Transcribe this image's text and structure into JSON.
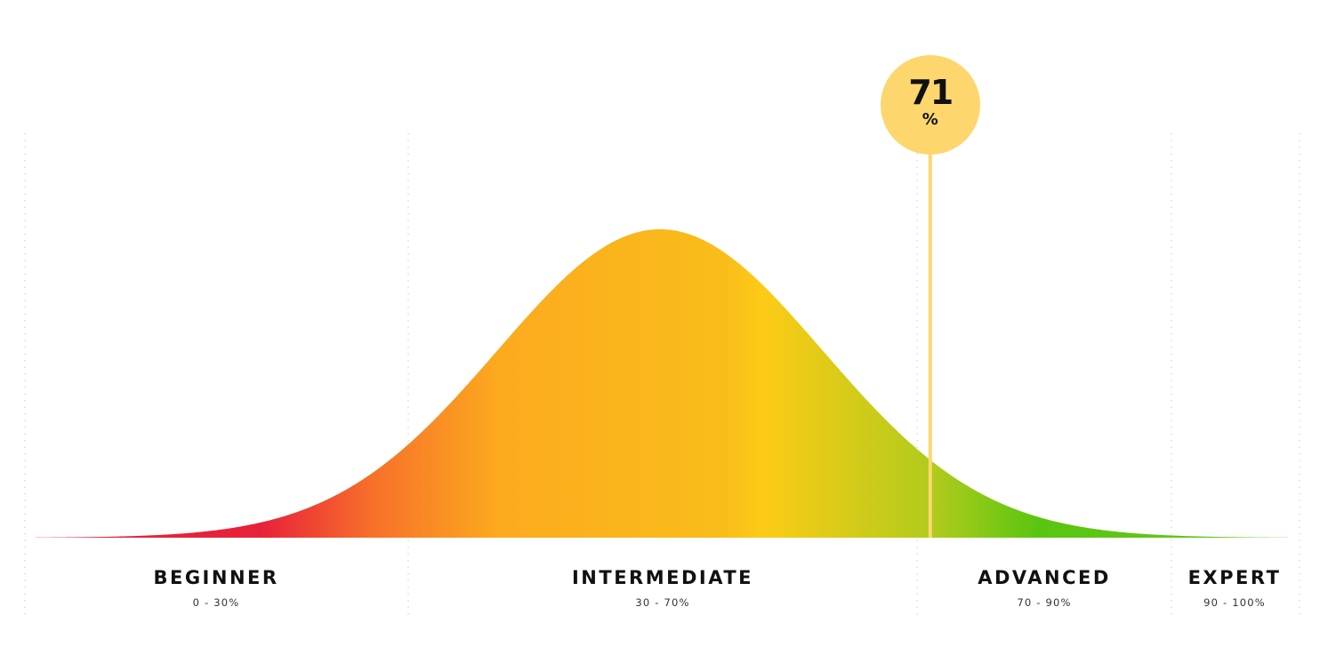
{
  "chart_data": {
    "type": "area",
    "title": "",
    "xlabel": "",
    "ylabel": "",
    "x_range": [
      0,
      100
    ],
    "zone_boundaries": [
      0,
      30,
      70,
      90,
      100
    ],
    "zones": [
      {
        "name": "BEGINNER",
        "range": "0 - 30%"
      },
      {
        "name": "INTERMEDIATE",
        "range": "30 - 70%"
      },
      {
        "name": "ADVANCED",
        "range": "70 - 90%"
      },
      {
        "name": "EXPERT",
        "range": "90 - 100%"
      }
    ],
    "curve": {
      "shape": "normal distribution (bell curve)",
      "peak_x": 50,
      "gradient_colors": [
        "#e8213a",
        "#f7712a",
        "#fcaa1e",
        "#f9bd1a",
        "#fdcb16",
        "#aecb1c",
        "#5ac511",
        "#66c61b"
      ]
    },
    "marker": {
      "value": 71,
      "label": "71",
      "unit": "%",
      "color": "#fdd76d"
    },
    "grid": "vertical dotted lines at zone boundaries",
    "legend": "none"
  }
}
